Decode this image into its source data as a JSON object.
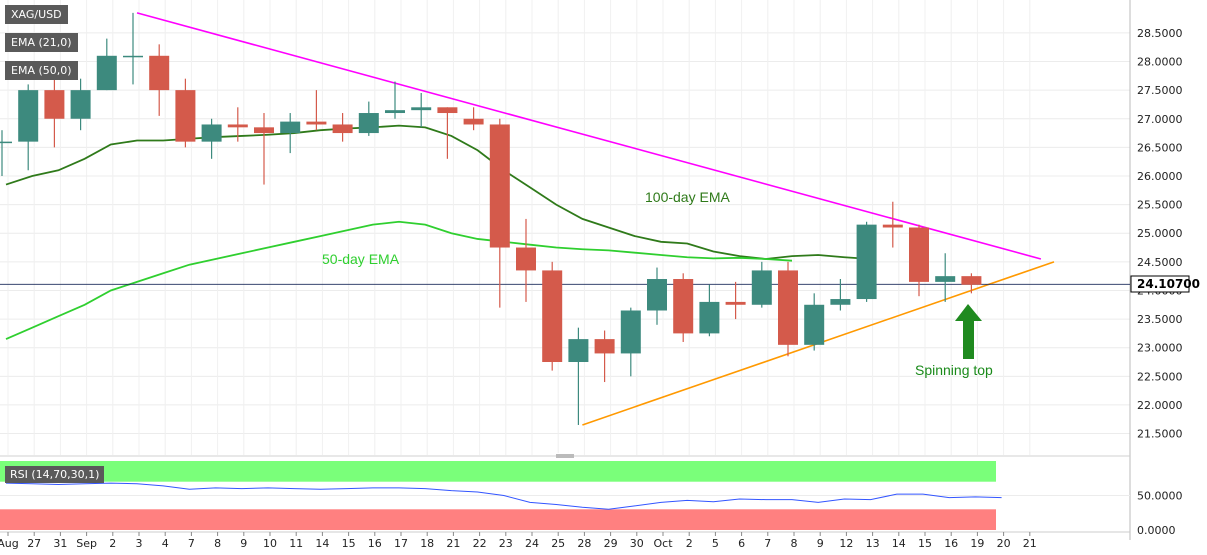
{
  "legend": {
    "symbol": "XAG/USD",
    "ema21": "EMA (21,0)",
    "ema50": "EMA (50,0)",
    "rsi": "RSI (14,70,30,1)"
  },
  "price_tag": "24.10700",
  "annotations": {
    "ema100": "100-day EMA",
    "ema50": "50-day EMA",
    "spinning": "Spinning top"
  },
  "colors": {
    "bull": "#3d8a7e",
    "bear": "#d45a4b",
    "ema21": "#2f7a1a",
    "ema50": "#2fcf2f",
    "trend_upper": "#ff00ff",
    "trend_lower": "#ff9900",
    "rsi": "#3355ff",
    "overbought": "#7aff7a",
    "oversold": "#ff8080"
  },
  "chart_data": {
    "type": "candlestick",
    "y_ticks": [
      "28.5000",
      "28.0000",
      "27.5000",
      "27.0000",
      "26.5000",
      "26.0000",
      "25.5000",
      "25.0000",
      "24.5000",
      "24.0000",
      "23.5000",
      "23.0000",
      "22.5000",
      "22.0000",
      "21.5000"
    ],
    "ylim": [
      21.3,
      28.9
    ],
    "x_labels": [
      "Aug",
      "27",
      "31",
      "Sep",
      "2",
      "3",
      "4",
      "7",
      "8",
      "9",
      "10",
      "11",
      "14",
      "15",
      "16",
      "17",
      "18",
      "21",
      "22",
      "23",
      "24",
      "25",
      "28",
      "29",
      "30",
      "Oct",
      "2",
      "5",
      "6",
      "7",
      "8",
      "9",
      "12",
      "13",
      "14",
      "15",
      "16",
      "19",
      "20",
      "21"
    ],
    "candles": [
      {
        "o": 26.6,
        "h": 26.8,
        "l": 26.0,
        "c": 26.6
      },
      {
        "o": 26.6,
        "h": 27.6,
        "l": 26.1,
        "c": 27.5
      },
      {
        "o": 27.5,
        "h": 27.7,
        "l": 26.5,
        "c": 27.0
      },
      {
        "o": 27.0,
        "h": 27.7,
        "l": 26.8,
        "c": 27.5
      },
      {
        "o": 27.5,
        "h": 28.4,
        "l": 27.5,
        "c": 28.1
      },
      {
        "o": 28.1,
        "h": 28.85,
        "l": 27.6,
        "c": 28.1
      },
      {
        "o": 28.1,
        "h": 28.3,
        "l": 27.05,
        "c": 27.5
      },
      {
        "o": 27.5,
        "h": 27.7,
        "l": 26.5,
        "c": 26.6
      },
      {
        "o": 26.6,
        "h": 27.0,
        "l": 26.3,
        "c": 26.9
      },
      {
        "o": 26.9,
        "h": 27.2,
        "l": 26.6,
        "c": 26.85
      },
      {
        "o": 26.85,
        "h": 27.1,
        "l": 25.85,
        "c": 26.75
      },
      {
        "o": 26.75,
        "h": 27.1,
        "l": 26.4,
        "c": 26.95
      },
      {
        "o": 26.95,
        "h": 27.5,
        "l": 26.8,
        "c": 26.9
      },
      {
        "o": 26.9,
        "h": 27.1,
        "l": 26.6,
        "c": 26.75
      },
      {
        "o": 26.75,
        "h": 27.3,
        "l": 26.7,
        "c": 27.1
      },
      {
        "o": 27.1,
        "h": 27.65,
        "l": 27.0,
        "c": 27.15
      },
      {
        "o": 27.15,
        "h": 27.45,
        "l": 26.85,
        "c": 27.2
      },
      {
        "o": 27.2,
        "h": 27.2,
        "l": 26.3,
        "c": 27.1
      },
      {
        "o": 27.0,
        "h": 27.2,
        "l": 26.8,
        "c": 26.9
      },
      {
        "o": 26.9,
        "h": 27.0,
        "l": 23.7,
        "c": 24.75
      },
      {
        "o": 24.75,
        "h": 25.25,
        "l": 23.8,
        "c": 24.35
      },
      {
        "o": 24.35,
        "h": 24.5,
        "l": 22.6,
        "c": 22.75
      },
      {
        "o": 22.75,
        "h": 23.35,
        "l": 21.65,
        "c": 23.15
      },
      {
        "o": 23.15,
        "h": 23.3,
        "l": 22.4,
        "c": 22.9
      },
      {
        "o": 22.9,
        "h": 23.7,
        "l": 22.5,
        "c": 23.65
      },
      {
        "o": 23.65,
        "h": 24.4,
        "l": 23.4,
        "c": 24.2
      },
      {
        "o": 24.2,
        "h": 24.3,
        "l": 23.1,
        "c": 23.25
      },
      {
        "o": 23.25,
        "h": 24.1,
        "l": 23.2,
        "c": 23.8
      },
      {
        "o": 23.8,
        "h": 24.15,
        "l": 23.5,
        "c": 23.75
      },
      {
        "o": 23.75,
        "h": 24.5,
        "l": 23.7,
        "c": 24.35
      },
      {
        "o": 24.35,
        "h": 24.5,
        "l": 22.85,
        "c": 23.05
      },
      {
        "o": 23.05,
        "h": 23.95,
        "l": 22.95,
        "c": 23.75
      },
      {
        "o": 23.75,
        "h": 24.2,
        "l": 23.65,
        "c": 23.85
      },
      {
        "o": 23.85,
        "h": 25.2,
        "l": 23.8,
        "c": 25.15
      },
      {
        "o": 25.15,
        "h": 25.55,
        "l": 24.75,
        "c": 25.1
      },
      {
        "o": 25.1,
        "h": 25.15,
        "l": 23.9,
        "c": 24.15
      },
      {
        "o": 24.15,
        "h": 24.65,
        "l": 23.8,
        "c": 24.25
      },
      {
        "o": 24.25,
        "h": 24.3,
        "l": 23.95,
        "c": 24.1
      }
    ],
    "ema_21": [
      25.85,
      26.0,
      26.1,
      26.3,
      26.55,
      26.62,
      26.62,
      26.65,
      26.68,
      26.7,
      26.72,
      26.75,
      26.8,
      26.83,
      26.85,
      26.88,
      26.85,
      26.7,
      26.45,
      26.1,
      25.8,
      25.5,
      25.25,
      25.1,
      24.95,
      24.85,
      24.82,
      24.68,
      24.6,
      24.55,
      24.6,
      24.62,
      24.58,
      24.55
    ],
    "ema_50": [
      23.15,
      23.35,
      23.55,
      23.75,
      24.0,
      24.15,
      24.3,
      24.45,
      24.55,
      24.65,
      24.75,
      24.85,
      24.95,
      25.05,
      25.15,
      25.2,
      25.15,
      25.0,
      24.9,
      24.85,
      24.8,
      24.75,
      24.72,
      24.7,
      24.66,
      24.62,
      24.58,
      24.56,
      24.57,
      24.55,
      24.52
    ],
    "trendlines": [
      {
        "x1": 5,
        "y1": 28.85,
        "x2": 39.5,
        "y2": 24.55
      },
      {
        "x1": 22,
        "y1": 21.65,
        "x2": 40.0,
        "y2": 24.5
      }
    ],
    "current_price": 24.107,
    "rsi": {
      "y_ticks": [
        "50.0000",
        "0.0000"
      ],
      "ylim": [
        0,
        100
      ],
      "overbought": 70,
      "oversold": 30,
      "values": [
        68,
        67,
        66,
        67,
        68,
        67,
        64,
        59,
        61,
        60,
        61,
        60,
        59,
        60,
        61,
        61,
        60,
        57,
        55,
        50,
        40,
        37,
        33,
        30,
        35,
        40,
        43,
        41,
        45,
        44,
        44,
        40,
        45,
        44,
        52,
        52,
        47,
        48,
        47
      ]
    }
  }
}
